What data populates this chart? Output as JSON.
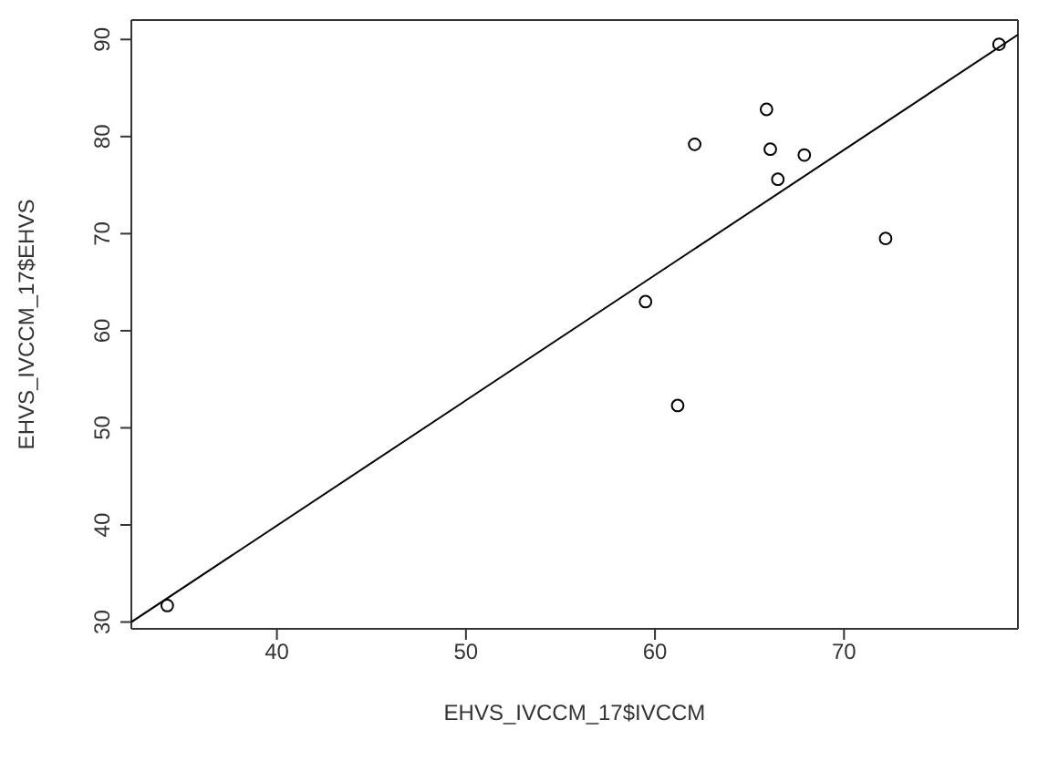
{
  "chart_data": {
    "type": "scatter",
    "xlabel": "EHVS_IVCCM_17$IVCCM",
    "ylabel": "EHVS_IVCCM_17$EHVS",
    "xlim": [
      32.3,
      79.2
    ],
    "ylim": [
      29.3,
      92
    ],
    "xticks": [
      40,
      50,
      60,
      70
    ],
    "yticks": [
      30,
      40,
      50,
      60,
      70,
      80,
      90
    ],
    "marker": "circle",
    "series": [
      {
        "color": "#000000",
        "x": [
          34.2,
          59.5,
          61.2,
          62.1,
          65.9,
          66.1,
          66.5,
          67.9,
          72.2,
          78.2
        ],
        "values": [
          31.7,
          63.0,
          52.3,
          79.2,
          82.8,
          78.7,
          75.6,
          78.1,
          69.5,
          89.5
        ]
      },
      {
        "type": "line",
        "marker": "none",
        "color": "#000000",
        "x": [
          32.3,
          79.2
        ],
        "values": [
          30,
          90.5
        ]
      }
    ]
  }
}
